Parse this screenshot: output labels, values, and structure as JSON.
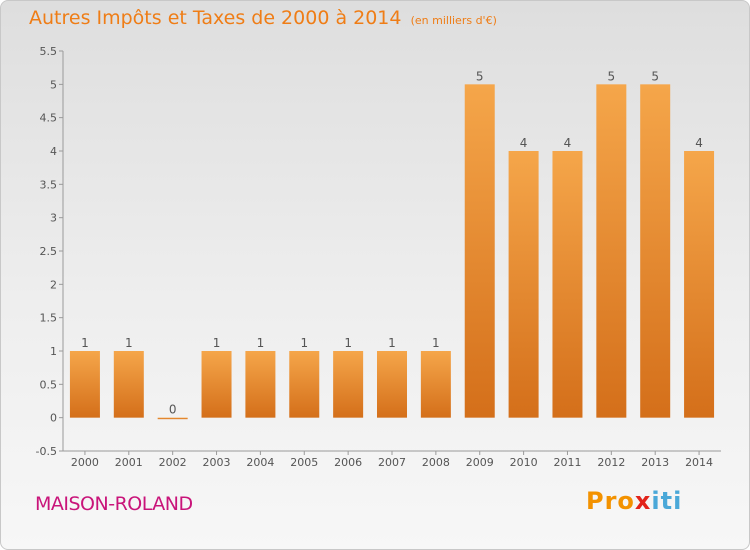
{
  "title": "Autres Impôts et Taxes de 2000 à 2014",
  "unit": "(en milliers d'€)",
  "commune": "MAISON-ROLAND",
  "logo": {
    "p1": "Pro",
    "x": "x",
    "p2": "iti"
  },
  "colors": {
    "bar_light": "#f5a64a",
    "bar_dark": "#d46f1a",
    "title": "#ef7d16",
    "commune": "#c9147a"
  },
  "chart_data": {
    "type": "bar",
    "categories": [
      "2000",
      "2001",
      "2002",
      "2003",
      "2004",
      "2005",
      "2006",
      "2007",
      "2008",
      "2009",
      "2010",
      "2011",
      "2012",
      "2013",
      "2014"
    ],
    "values": [
      1,
      1,
      0,
      1,
      1,
      1,
      1,
      1,
      1,
      5,
      4,
      4,
      5,
      5,
      4
    ],
    "data_labels": [
      "1",
      "1",
      "0",
      "1",
      "1",
      "1",
      "1",
      "1",
      "1",
      "5",
      "4",
      "4",
      "5",
      "5",
      "4"
    ],
    "ylim": [
      -0.5,
      5.5
    ],
    "yticks": [
      "-0.5",
      "0",
      "0.5",
      "1",
      "1.5",
      "2",
      "2.5",
      "3",
      "3.5",
      "4",
      "4.5",
      "5",
      "5.5"
    ],
    "ytick_values": [
      -0.5,
      0,
      0.5,
      1,
      1.5,
      2,
      2.5,
      3,
      3.5,
      4,
      4.5,
      5,
      5.5
    ],
    "grid": false,
    "xlabel": "",
    "ylabel": ""
  }
}
